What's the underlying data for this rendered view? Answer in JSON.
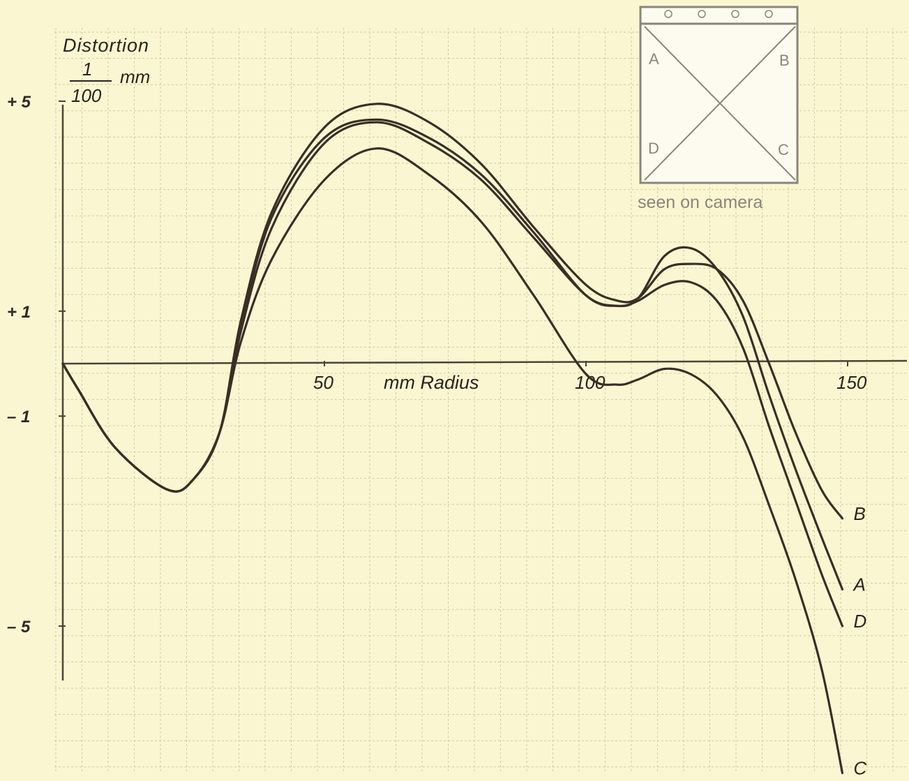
{
  "chart_data": {
    "type": "line",
    "title": "",
    "ylabel": "Distortion",
    "yunit_numerator": "1",
    "yunit_denominator": "100",
    "yunit_suffix": "mm",
    "xlabel": "mm Radius",
    "x_tick_labels": [
      "50",
      "100",
      "150"
    ],
    "y_tick_labels": [
      "+ 5",
      "+ 1",
      "– 1",
      "– 5"
    ],
    "xlim": [
      0,
      160
    ],
    "ylim": [
      -7.9,
      5.8
    ],
    "grid": true,
    "series": [
      {
        "name": "B",
        "x": [
          0,
          3,
          10,
          20,
          25,
          30,
          34,
          40,
          50,
          60,
          70,
          80,
          90,
          100,
          106,
          110,
          115,
          120,
          125,
          130,
          135,
          140,
          145,
          149
        ],
        "y": [
          0,
          -0.5,
          -1.6,
          -2.4,
          -2.2,
          -1.3,
          0.8,
          2.9,
          4.5,
          4.95,
          4.6,
          3.8,
          2.6,
          1.5,
          1.2,
          1.25,
          1.8,
          1.9,
          1.8,
          1.2,
          0.0,
          -1.3,
          -2.4,
          -2.95
        ]
      },
      {
        "name": "A",
        "x": [
          0,
          3,
          10,
          20,
          25,
          30,
          34,
          40,
          50,
          60,
          70,
          80,
          90,
          100,
          106,
          110,
          115,
          120,
          125,
          130,
          135,
          140,
          145,
          149
        ],
        "y": [
          0,
          -0.5,
          -1.6,
          -2.4,
          -2.2,
          -1.3,
          0.7,
          2.8,
          4.3,
          4.65,
          4.3,
          3.6,
          2.5,
          1.3,
          1.1,
          1.25,
          2.05,
          2.2,
          1.8,
          0.9,
          -0.6,
          -2.0,
          -3.3,
          -4.3
        ]
      },
      {
        "name": "D",
        "x": [
          0,
          3,
          10,
          20,
          25,
          30,
          34,
          40,
          50,
          60,
          70,
          80,
          90,
          100,
          106,
          110,
          115,
          120,
          125,
          130,
          135,
          140,
          145,
          149
        ],
        "y": [
          0,
          -0.5,
          -1.6,
          -2.4,
          -2.2,
          -1.3,
          0.6,
          2.6,
          4.2,
          4.6,
          4.2,
          3.5,
          2.4,
          1.3,
          1.1,
          1.2,
          1.5,
          1.55,
          1.2,
          0.3,
          -1.2,
          -2.6,
          -4.0,
          -5.0
        ]
      },
      {
        "name": "C",
        "x": [
          0,
          3,
          10,
          20,
          25,
          30,
          34,
          40,
          50,
          60,
          70,
          80,
          90,
          100,
          106,
          110,
          115,
          120,
          125,
          130,
          135,
          140,
          145,
          149
        ],
        "y": [
          0,
          -0.5,
          -1.6,
          -2.4,
          -2.2,
          -1.3,
          0.4,
          2.0,
          3.5,
          4.1,
          3.6,
          2.7,
          1.3,
          -0.2,
          -0.4,
          -0.3,
          -0.1,
          -0.2,
          -0.6,
          -1.4,
          -2.7,
          -4.1,
          -5.8,
          -7.8
        ]
      }
    ]
  },
  "inset": {
    "corner_labels": [
      "A",
      "B",
      "C",
      "D"
    ],
    "caption": "seen on camera"
  },
  "colors": {
    "background": "#fbf6d2",
    "grid": "#cfcba6",
    "axis": "#4a4436",
    "curve": "#3a2e25",
    "inset": "#8a857a"
  }
}
